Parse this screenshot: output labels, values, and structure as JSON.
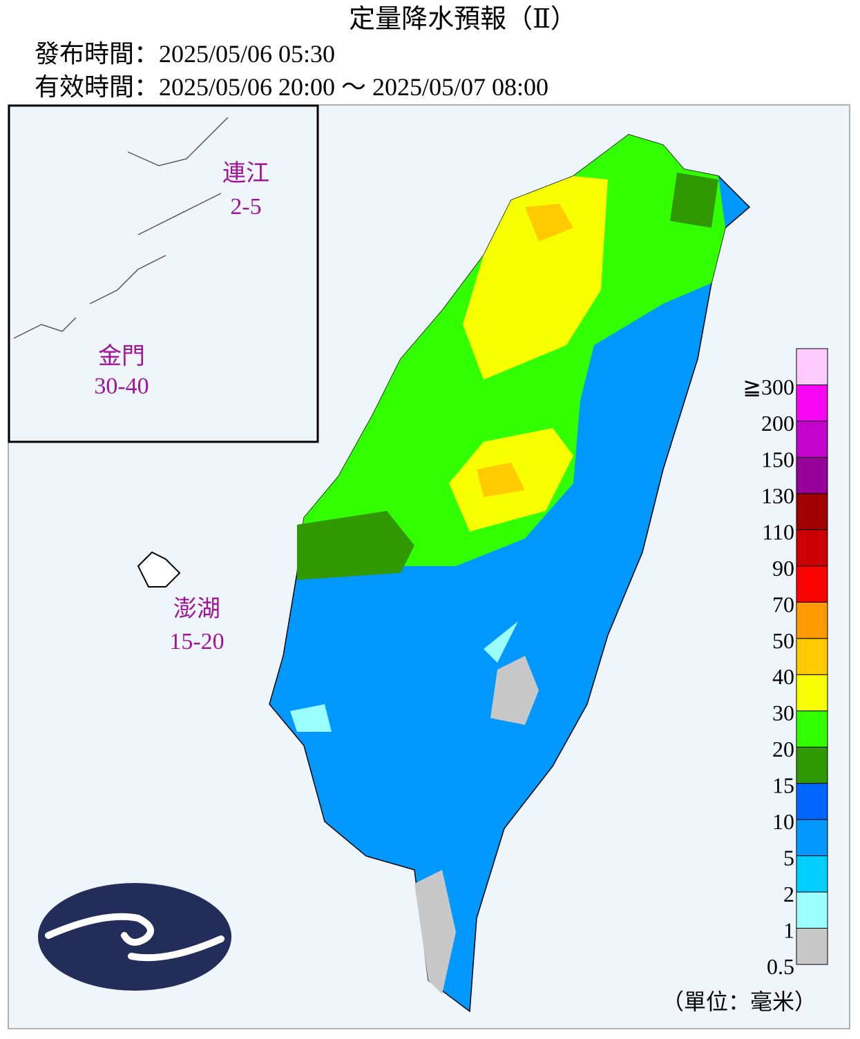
{
  "title": "定量降水預報（Ⅱ）",
  "issued": "發布時間：2025/05/06 05:30",
  "valid": "有效時間：2025/05/06 20:00 ～ 2025/05/07 08:00",
  "regions": [
    {
      "name": "連江",
      "range": "2-5"
    },
    {
      "name": "金門",
      "range": "30-40"
    },
    {
      "name": "澎湖",
      "range": "15-20"
    }
  ],
  "legend": {
    "labels": [
      "0.5",
      "1",
      "2",
      "5",
      "10",
      "15",
      "20",
      "30",
      "40",
      "50",
      "70",
      "90",
      "110",
      "130",
      "150",
      "200",
      "≧300"
    ],
    "colors": [
      "#c8c8c8",
      "#9bffff",
      "#00cfff",
      "#0198ff",
      "#0165ff",
      "#309901",
      "#32ff00",
      "#f8ff00",
      "#ffcb00",
      "#ff9a00",
      "#fa0300",
      "#cc0003",
      "#a00000",
      "#98009a",
      "#c304cc",
      "#f805f3",
      "#fecbff"
    ],
    "unit": "（單位：毫米）"
  }
}
